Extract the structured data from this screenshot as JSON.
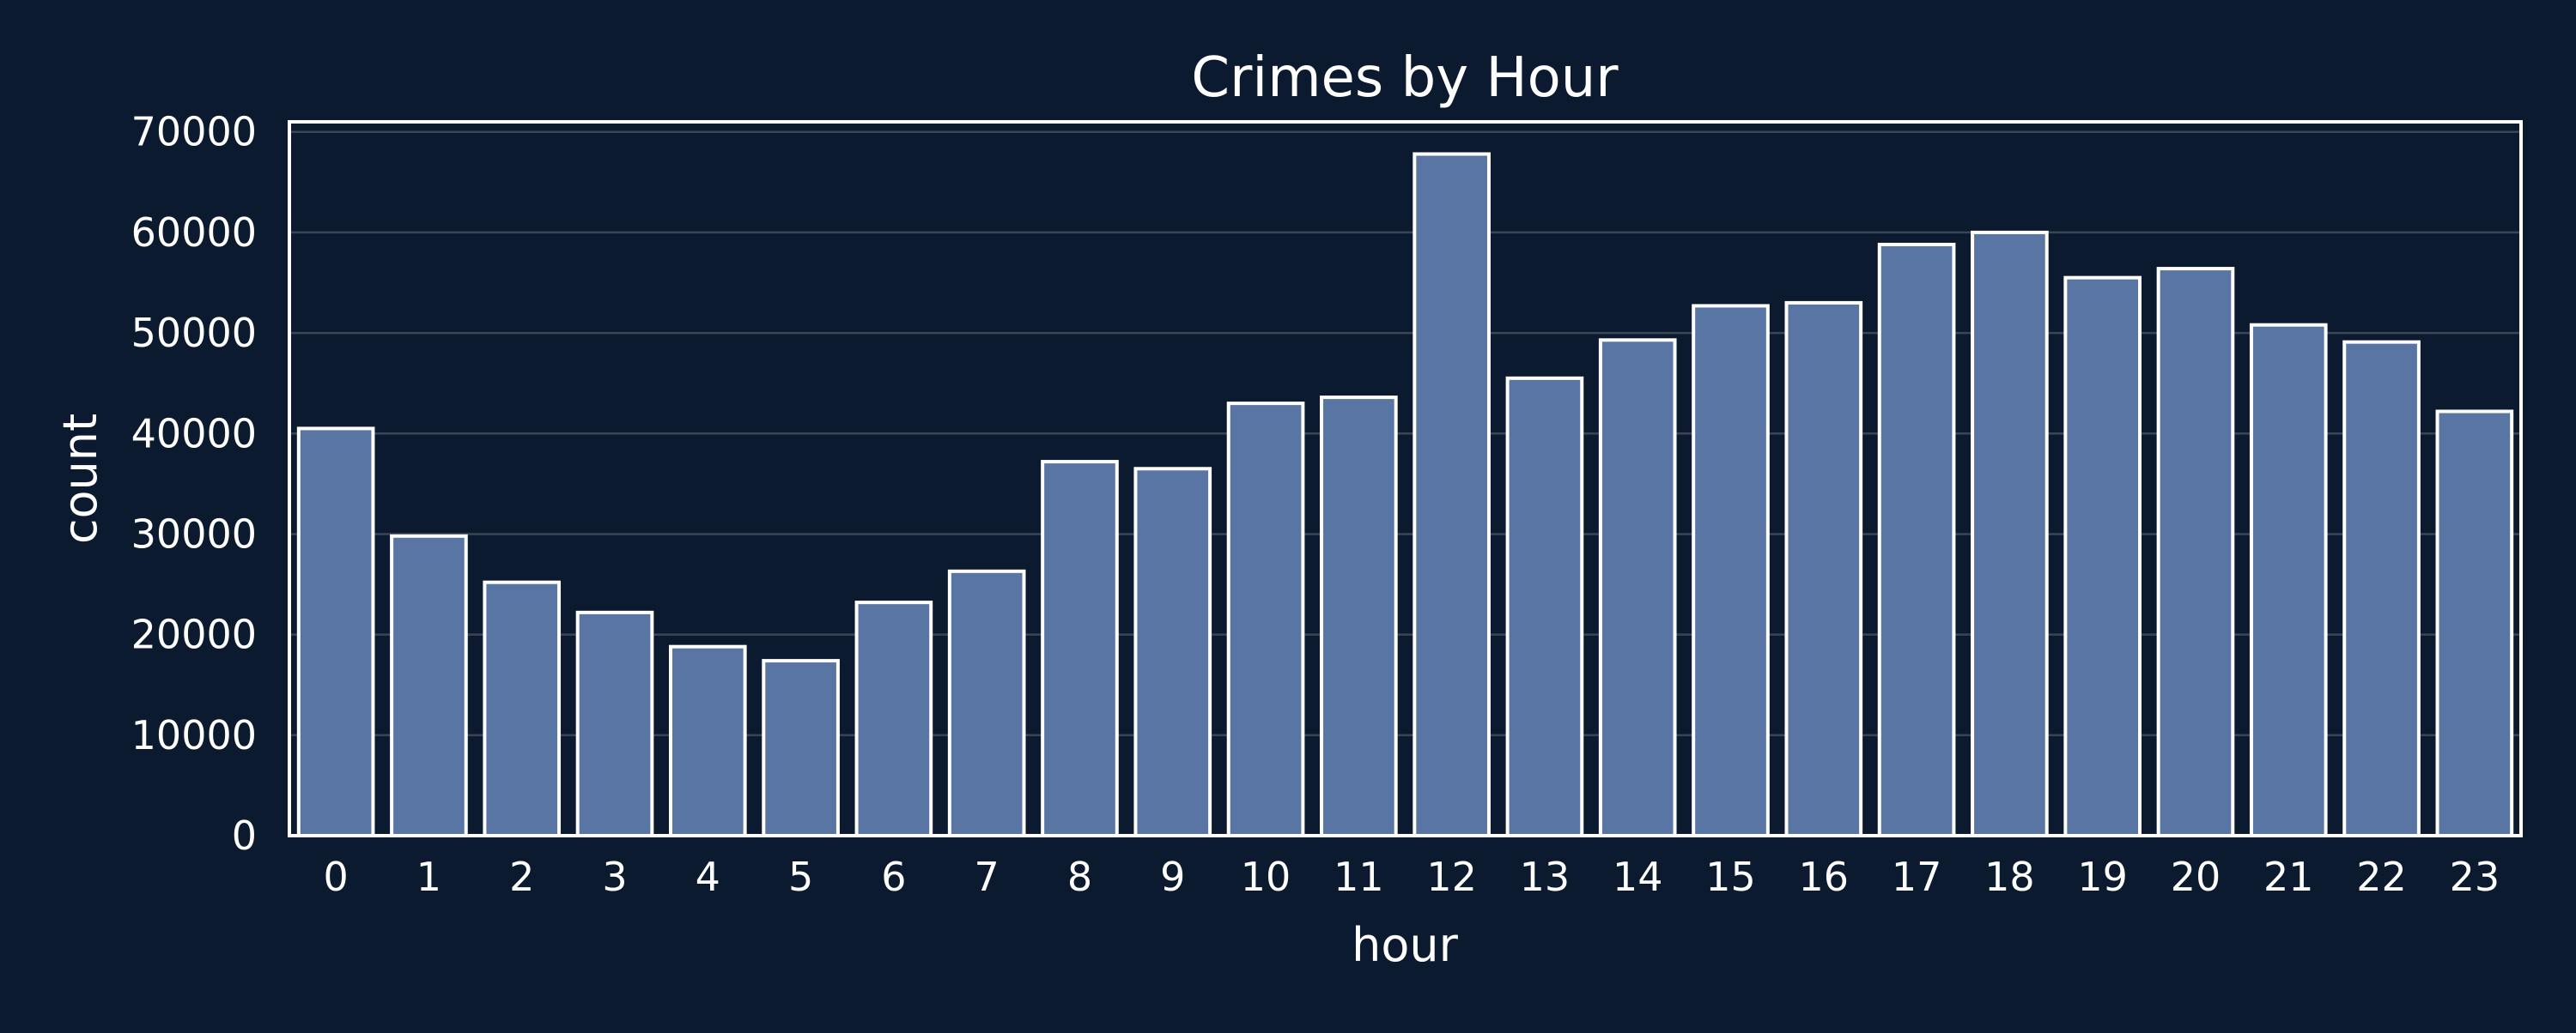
{
  "chart_data": {
    "type": "bar",
    "title": "Crimes by Hour",
    "xlabel": "hour",
    "ylabel": "count",
    "categories": [
      "0",
      "1",
      "2",
      "3",
      "4",
      "5",
      "6",
      "7",
      "8",
      "9",
      "10",
      "11",
      "12",
      "13",
      "14",
      "15",
      "16",
      "17",
      "18",
      "19",
      "20",
      "21",
      "22",
      "23"
    ],
    "values": [
      40500,
      29800,
      25200,
      22200,
      18800,
      17400,
      23200,
      26300,
      37200,
      36500,
      43000,
      43600,
      67800,
      45500,
      49300,
      52700,
      53000,
      58800,
      60000,
      55500,
      56400,
      50800,
      49100,
      42200
    ],
    "ylim": [
      0,
      71000
    ],
    "yticks": [
      0,
      10000,
      20000,
      30000,
      40000,
      50000,
      60000,
      70000
    ],
    "grid": true,
    "colors": {
      "background": "#0b1a2f",
      "bar": "#5875a4",
      "bar_edge": "#ffffff",
      "grid": "#3a4656",
      "text": "#ffffff"
    }
  }
}
